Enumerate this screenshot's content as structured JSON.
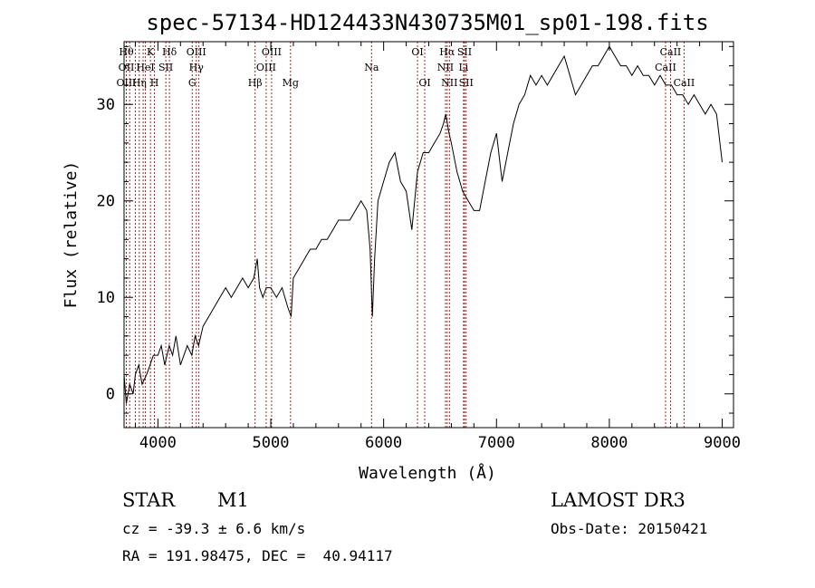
{
  "chart_data": {
    "type": "line",
    "title": "spec-57134-HD124433N430735M01_sp01-198.fits",
    "xlabel": "Wavelength (Å)",
    "ylabel": "Flux (relative)",
    "xlim": [
      3700,
      9100
    ],
    "ylim": [
      -3.5,
      36.5
    ],
    "x_ticks": [
      4000,
      5000,
      6000,
      7000,
      8000,
      9000
    ],
    "y_ticks": [
      0,
      10,
      20,
      30
    ],
    "grid": false,
    "line_color": "#000000",
    "marker_color": "#b22222",
    "series": [
      {
        "x": [
          3700,
          3720,
          3750,
          3780,
          3800,
          3830,
          3860,
          3900,
          3930,
          3960,
          4000,
          4030,
          4060,
          4100,
          4130,
          4160,
          4200,
          4230,
          4260,
          4300,
          4330,
          4360,
          4400,
          4450,
          4500,
          4550,
          4600,
          4650,
          4700,
          4750,
          4800,
          4850,
          4880,
          4900,
          4930,
          4960,
          5000,
          5050,
          5100,
          5150,
          5180,
          5200,
          5250,
          5300,
          5350,
          5400,
          5450,
          5500,
          5550,
          5600,
          5650,
          5700,
          5750,
          5800,
          5850,
          5880,
          5900,
          5920,
          5950,
          6000,
          6050,
          6100,
          6150,
          6200,
          6250,
          6300,
          6350,
          6400,
          6450,
          6500,
          6530,
          6550,
          6580,
          6600,
          6650,
          6700,
          6750,
          6800,
          6850,
          6900,
          6950,
          7000,
          7050,
          7100,
          7150,
          7200,
          7250,
          7300,
          7350,
          7400,
          7450,
          7500,
          7550,
          7600,
          7650,
          7700,
          7750,
          7800,
          7850,
          7900,
          7950,
          8000,
          8050,
          8100,
          8150,
          8200,
          8250,
          8300,
          8350,
          8400,
          8450,
          8500,
          8550,
          8600,
          8650,
          8700,
          8750,
          8800,
          8850,
          8900,
          8950,
          9000
        ],
        "y": [
          2,
          -1,
          1,
          0,
          2,
          3,
          1,
          2,
          3,
          4,
          4,
          5,
          3,
          5,
          4,
          6,
          3,
          4,
          5,
          4,
          6,
          5,
          7,
          8,
          9,
          10,
          11,
          10,
          11,
          12,
          11,
          12,
          14,
          11,
          10,
          11,
          11,
          10,
          11,
          9,
          8,
          12,
          13,
          14,
          15,
          15,
          16,
          16,
          17,
          18,
          18,
          18,
          19,
          20,
          19,
          15,
          8,
          14,
          20,
          22,
          24,
          25,
          22,
          21,
          17,
          23,
          25,
          25,
          26,
          27,
          28,
          29,
          27,
          26,
          23,
          21,
          20,
          19,
          19,
          22,
          25,
          27,
          22,
          25,
          28,
          30,
          31,
          33,
          32,
          33,
          32,
          33,
          34,
          35,
          33,
          31,
          32,
          33,
          34,
          34,
          35,
          36,
          35,
          34,
          34,
          33,
          34,
          33,
          33,
          32,
          33,
          32,
          32,
          31,
          31,
          30,
          31,
          30,
          29,
          30,
          29,
          24
        ]
      }
    ],
    "lines": [
      {
        "x": 3720,
        "labels": [
          "Hθ",
          "OII",
          "OIII"
        ]
      },
      {
        "x": 3750,
        "labels": [
          "",
          "",
          ""
        ]
      },
      {
        "x": 3800,
        "labels": [
          "",
          "",
          ""
        ]
      },
      {
        "x": 3835,
        "labels": [
          "",
          "",
          "Hη"
        ]
      },
      {
        "x": 3869,
        "labels": [
          "",
          "",
          ""
        ]
      },
      {
        "x": 3889,
        "labels": [
          "",
          "HeI",
          ""
        ]
      },
      {
        "x": 3934,
        "labels": [
          "K",
          "",
          ""
        ]
      },
      {
        "x": 3969,
        "labels": [
          "",
          "",
          "H"
        ]
      },
      {
        "x": 4070,
        "labels": [
          "",
          "SII",
          ""
        ]
      },
      {
        "x": 4102,
        "labels": [
          "Hδ",
          "",
          ""
        ]
      },
      {
        "x": 4304,
        "labels": [
          "",
          "",
          "G"
        ]
      },
      {
        "x": 4340,
        "labels": [
          "OIII",
          "Hγ",
          ""
        ]
      },
      {
        "x": 4363,
        "labels": [
          "",
          "",
          ""
        ]
      },
      {
        "x": 4861,
        "labels": [
          "",
          "",
          "Hβ"
        ]
      },
      {
        "x": 4959,
        "labels": [
          "",
          "OIII",
          ""
        ]
      },
      {
        "x": 5007,
        "labels": [
          "OIII",
          "",
          ""
        ]
      },
      {
        "x": 5175,
        "labels": [
          "",
          "",
          "Mg"
        ]
      },
      {
        "x": 5893,
        "labels": [
          "",
          "Na",
          ""
        ]
      },
      {
        "x": 6300,
        "labels": [
          "OI",
          "",
          ""
        ]
      },
      {
        "x": 6364,
        "labels": [
          "",
          "",
          "OI"
        ]
      },
      {
        "x": 6548,
        "labels": [
          "",
          "NII",
          ""
        ]
      },
      {
        "x": 6563,
        "labels": [
          "Hα",
          "",
          ""
        ]
      },
      {
        "x": 6583,
        "labels": [
          "",
          "",
          "NII"
        ]
      },
      {
        "x": 6708,
        "labels": [
          "",
          "Li",
          ""
        ]
      },
      {
        "x": 6717,
        "labels": [
          "SII",
          "",
          ""
        ]
      },
      {
        "x": 6731,
        "labels": [
          "",
          "",
          "SII"
        ]
      },
      {
        "x": 8498,
        "labels": [
          "",
          "CaII",
          ""
        ]
      },
      {
        "x": 8542,
        "labels": [
          "CaII",
          "",
          ""
        ]
      },
      {
        "x": 8662,
        "labels": [
          "",
          "",
          "CaII"
        ]
      }
    ]
  },
  "info": {
    "object_class": "STAR",
    "subclass": "M1",
    "survey": "LAMOST DR3",
    "redshift": "cz = -39.3 ± 6.6 km/s",
    "obs_date": "Obs-Date: 20150421",
    "coords": "RA = 191.98475, DEC =  40.94117"
  }
}
